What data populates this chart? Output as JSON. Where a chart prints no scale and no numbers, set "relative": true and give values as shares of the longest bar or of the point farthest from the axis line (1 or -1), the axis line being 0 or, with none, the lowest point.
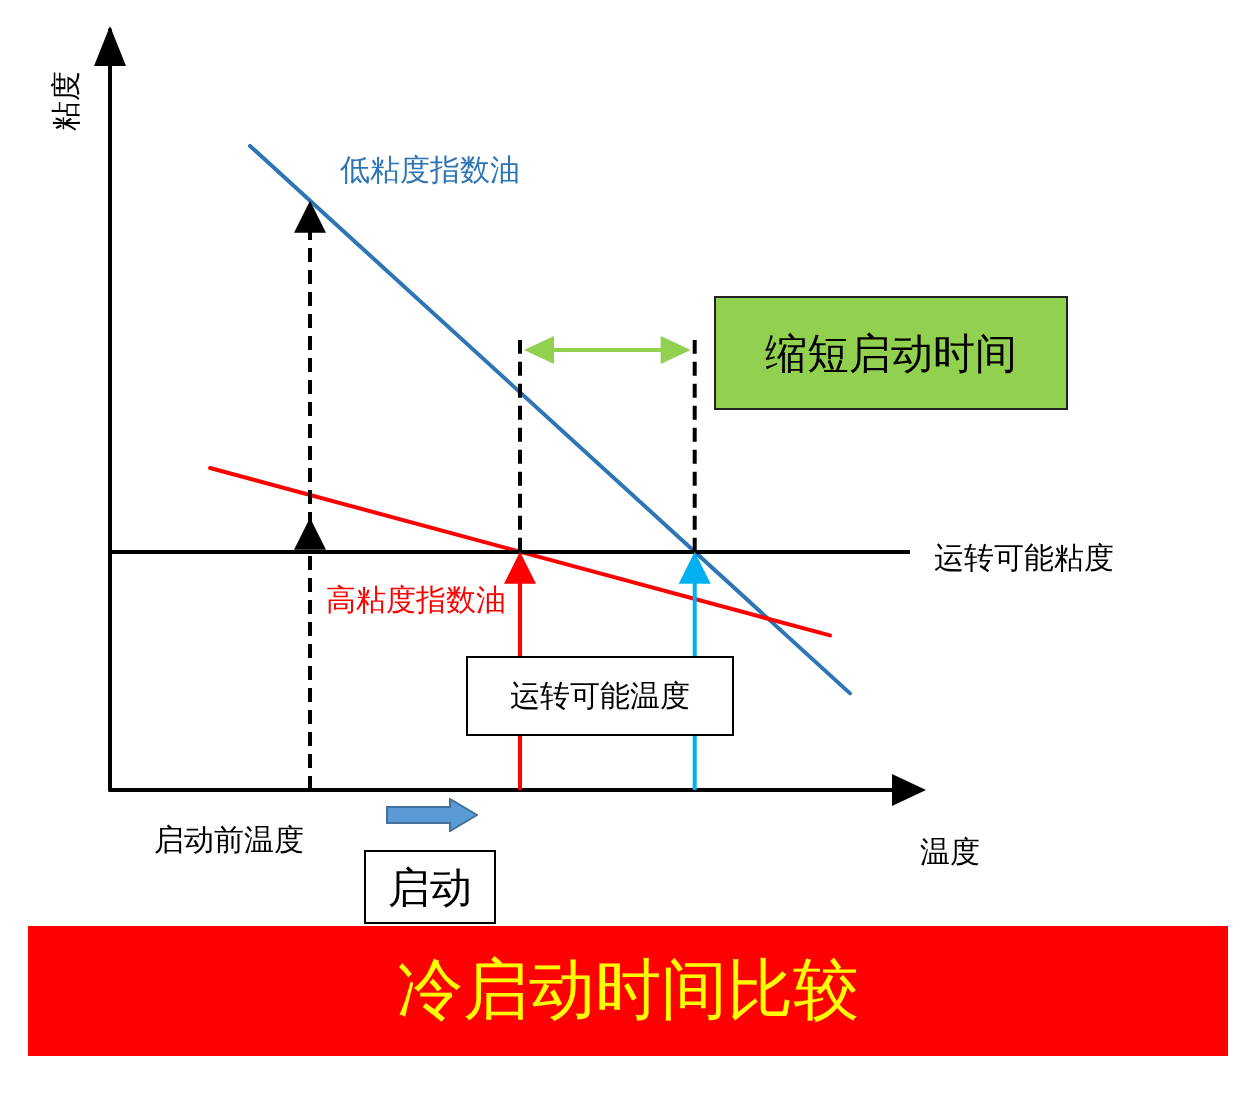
{
  "chart_data": {
    "type": "line",
    "title": "冷启动时间比较",
    "xlabel": "温度",
    "ylabel": "粘度",
    "relative": true,
    "marker": "none",
    "categories": [
      null,
      null,
      null,
      null,
      null,
      null,
      null,
      null,
      null,
      null,
      null,
      null,
      null,
      null,
      null,
      null,
      null,
      null,
      null,
      null,
      null,
      null,
      null,
      null,
      null,
      null,
      null,
      null,
      null,
      null,
      null,
      null,
      null,
      null,
      null,
      null,
      null,
      null,
      null,
      null,
      null
    ],
    "series": [
      {
        "name": "低粘度指数油",
        "color": "#2e75b6",
        "values": [
          null,
          null,
          null,
          null,
          null,
          null,
          null,
          1,
          null,
          null,
          null,
          null,
          null,
          null,
          null,
          null,
          null,
          null,
          null,
          null,
          null,
          null,
          null,
          null,
          null,
          null,
          null,
          null,
          null,
          null,
          null,
          null,
          null,
          null,
          null,
          null,
          null,
          0.15,
          null,
          null,
          null
        ]
      },
      {
        "name": "高粘度指数油",
        "color": "#ff0000",
        "values": [
          null,
          null,
          null,
          null,
          null,
          0.5,
          null,
          null,
          null,
          null,
          null,
          null,
          null,
          null,
          null,
          null,
          null,
          null,
          null,
          null,
          null,
          null,
          null,
          null,
          null,
          null,
          null,
          null,
          null,
          null,
          null,
          null,
          null,
          null,
          null,
          null,
          0.24,
          null,
          null,
          null,
          null
        ]
      }
    ],
    "ref_lines": [
      {
        "axis": "y",
        "value": 0.37,
        "label": "运转可能粘度",
        "color": "#000000"
      }
    ],
    "annotations": [
      "缩短启动时间",
      "运转可能温度",
      "启动前温度",
      "启动"
    ]
  }
}
